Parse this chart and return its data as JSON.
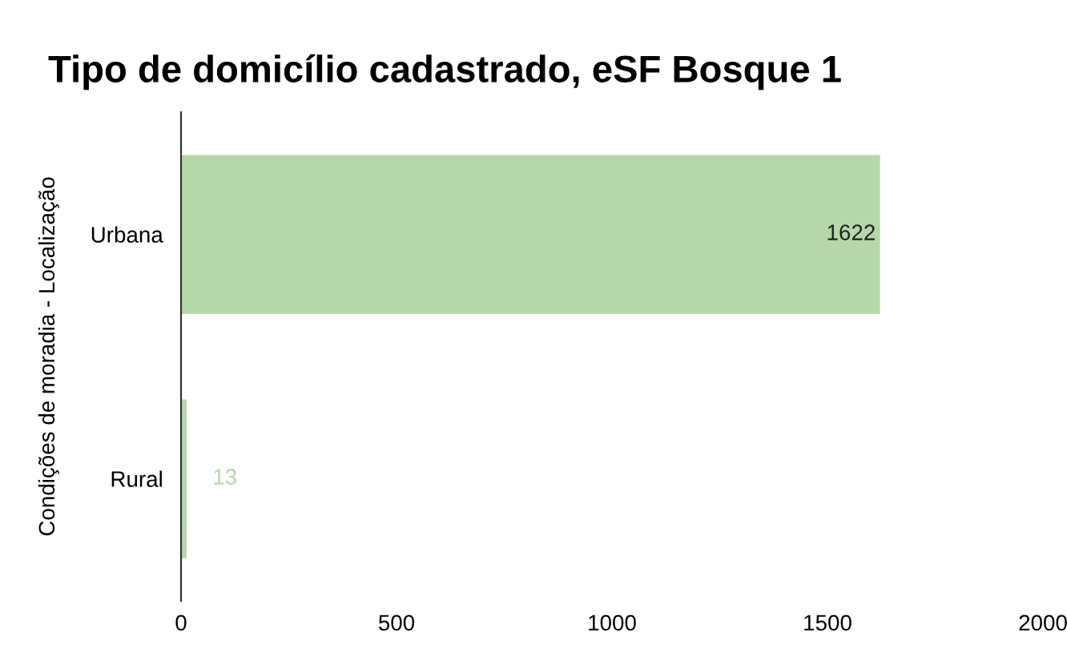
{
  "chart_data": {
    "type": "bar",
    "orientation": "horizontal",
    "title": "Tipo de domicílio cadastrado, eSF Bosque 1",
    "ylabel": "Condições de moradia - Localização",
    "categories": [
      "Urbana",
      "Rural"
    ],
    "values": [
      1622,
      13
    ],
    "color": "#b6d7a8",
    "xlim": [
      0,
      2000
    ],
    "xticks": [
      0,
      500,
      1000,
      1500,
      2000
    ],
    "data_labels": true,
    "grid": false,
    "legend": false
  }
}
